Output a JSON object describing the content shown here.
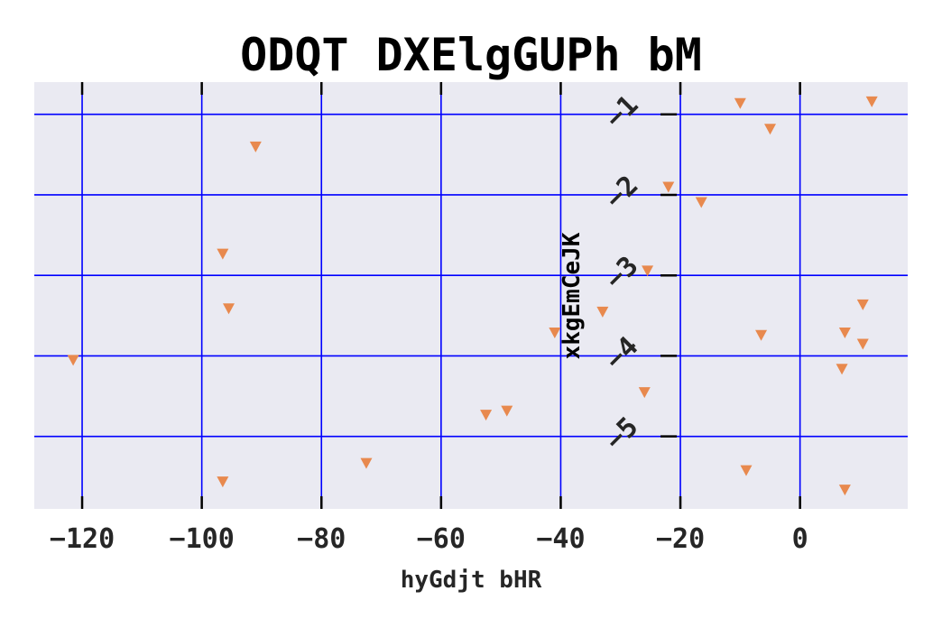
{
  "chart_data": {
    "type": "scatter",
    "title": "ODQT DXElgGUPh bM",
    "xlabel": "hyGdjt bHR",
    "ylabel": "xkgEmCeJK",
    "xlim": [
      -128,
      18
    ],
    "ylim": [
      -5.9,
      -0.6
    ],
    "xticks": [
      -120,
      -100,
      -80,
      -60,
      -40,
      -20,
      0
    ],
    "xtick_labels": [
      "−120",
      "−100",
      "−80",
      "−60",
      "−40",
      "−20",
      "0"
    ],
    "yticks": [
      -1,
      -2,
      -3,
      -4,
      -5
    ],
    "ytick_labels": [
      "−1",
      "−2",
      "−3",
      "−4",
      "−5"
    ],
    "y_axis_position_x": -20,
    "grid": true,
    "marker": "triangle-down",
    "colors": {
      "background": "#eaeaf2",
      "grid": "#0000ff",
      "marker": "#e8894e",
      "tick": "#000000"
    },
    "points": [
      {
        "x": 12.0,
        "y": -0.84
      },
      {
        "x": -10.0,
        "y": -0.86
      },
      {
        "x": -5.0,
        "y": -1.18
      },
      {
        "x": -91.0,
        "y": -1.4
      },
      {
        "x": -22.0,
        "y": -1.9
      },
      {
        "x": -16.5,
        "y": -2.09
      },
      {
        "x": -96.5,
        "y": -2.73
      },
      {
        "x": -25.5,
        "y": -2.94
      },
      {
        "x": -95.5,
        "y": -3.41
      },
      {
        "x": -33.0,
        "y": -3.45
      },
      {
        "x": 10.5,
        "y": -3.36
      },
      {
        "x": -41.0,
        "y": -3.71
      },
      {
        "x": -6.5,
        "y": -3.74
      },
      {
        "x": 7.5,
        "y": -3.71
      },
      {
        "x": 10.5,
        "y": -3.85
      },
      {
        "x": -121.5,
        "y": -4.05
      },
      {
        "x": 7.0,
        "y": -4.16
      },
      {
        "x": -26.0,
        "y": -4.45
      },
      {
        "x": -49.0,
        "y": -4.68
      },
      {
        "x": -52.5,
        "y": -4.73
      },
      {
        "x": -72.5,
        "y": -5.33
      },
      {
        "x": -9.0,
        "y": -5.42
      },
      {
        "x": -96.5,
        "y": -5.56
      },
      {
        "x": 7.5,
        "y": -5.66
      }
    ]
  }
}
